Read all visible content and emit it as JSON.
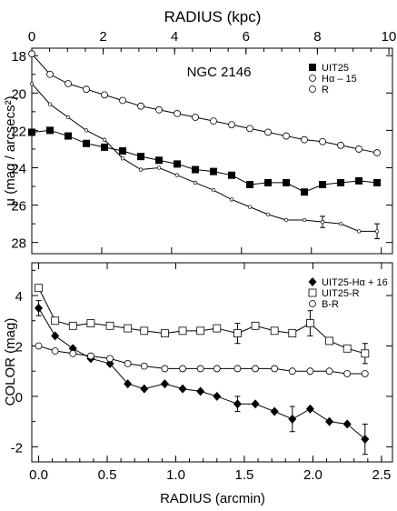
{
  "chart_data": [
    {
      "type": "line",
      "title": "NGC 2146",
      "top_axis_label": "RADIUS (kpc)",
      "top_axis_range": [
        0,
        10
      ],
      "top_ticks": [
        "0",
        "2",
        "4",
        "6",
        "8",
        "10"
      ],
      "ylabel": "μ (mag / arcsecs²)",
      "ylim": [
        28.6,
        17.6
      ],
      "y_inverted": true,
      "yticks": [
        "18",
        "20",
        "22",
        "24",
        "26",
        "28"
      ],
      "xlim": [
        0,
        2.58
      ],
      "legend_position": "top-right",
      "series": [
        {
          "name": "UIT25",
          "marker": "filled-square",
          "x": [
            0.0,
            0.13,
            0.26,
            0.39,
            0.52,
            0.65,
            0.78,
            0.91,
            1.04,
            1.17,
            1.3,
            1.43,
            1.56,
            1.69,
            1.82,
            1.95,
            2.08,
            2.21,
            2.34,
            2.47
          ],
          "y": [
            22.1,
            22.0,
            22.3,
            22.7,
            22.9,
            23.1,
            23.4,
            23.6,
            23.8,
            24.1,
            24.2,
            24.4,
            24.9,
            24.8,
            24.8,
            25.3,
            24.9,
            24.8,
            24.7,
            24.8
          ]
        },
        {
          "name": "Hα – 15",
          "marker": "small-open-circle",
          "x": [
            0.0,
            0.13,
            0.26,
            0.39,
            0.52,
            0.65,
            0.78,
            0.91,
            1.04,
            1.17,
            1.3,
            1.43,
            1.56,
            1.69,
            1.82,
            1.95,
            2.08,
            2.21,
            2.34,
            2.47
          ],
          "y": [
            19.5,
            20.6,
            21.3,
            22.0,
            22.5,
            23.5,
            24.1,
            24.0,
            24.4,
            24.8,
            25.2,
            25.7,
            26.1,
            26.5,
            26.8,
            26.8,
            26.9,
            27.0,
            27.4,
            27.4
          ]
        },
        {
          "name": "R",
          "marker": "open-circle",
          "x": [
            0.0,
            0.13,
            0.26,
            0.39,
            0.52,
            0.65,
            0.78,
            0.91,
            1.04,
            1.17,
            1.3,
            1.43,
            1.56,
            1.69,
            1.82,
            1.95,
            2.08,
            2.21,
            2.34,
            2.47
          ],
          "y": [
            17.9,
            19.0,
            19.5,
            19.8,
            20.1,
            20.4,
            20.7,
            20.9,
            21.1,
            21.3,
            21.5,
            21.7,
            21.9,
            22.1,
            22.3,
            22.5,
            22.6,
            22.8,
            23.0,
            23.2
          ]
        }
      ]
    },
    {
      "type": "line",
      "xlabel": "RADIUS (arcmin)",
      "ylabel": "COLOR (mag)",
      "xlim": [
        -0.05,
        2.58
      ],
      "ylim": [
        -2.6,
        5.3
      ],
      "xticks": [
        "0.0",
        "0.5",
        "1.0",
        "1.5",
        "2.0",
        "2.5"
      ],
      "yticks": [
        "-2",
        "0",
        "2",
        "4"
      ],
      "legend_position": "top-right",
      "series": [
        {
          "name": "UIT25-Hα + 16",
          "marker": "filled-diamond",
          "x": [
            0.0,
            0.12,
            0.25,
            0.38,
            0.52,
            0.65,
            0.77,
            0.92,
            1.05,
            1.18,
            1.3,
            1.45,
            1.58,
            1.72,
            1.85,
            1.98,
            2.12,
            2.25,
            2.38
          ],
          "y": [
            3.5,
            2.4,
            1.9,
            1.5,
            1.3,
            0.5,
            0.3,
            0.5,
            0.3,
            0.2,
            0.0,
            -0.3,
            -0.3,
            -0.6,
            -0.9,
            -0.5,
            -1.0,
            -1.1,
            -1.7
          ]
        },
        {
          "name": "UIT25-R",
          "marker": "open-square",
          "x": [
            0.0,
            0.12,
            0.25,
            0.38,
            0.52,
            0.65,
            0.77,
            0.92,
            1.05,
            1.18,
            1.3,
            1.45,
            1.58,
            1.72,
            1.85,
            1.98,
            2.12,
            2.25,
            2.38
          ],
          "y": [
            4.3,
            3.0,
            2.8,
            2.9,
            2.8,
            2.7,
            2.6,
            2.5,
            2.6,
            2.6,
            2.7,
            2.5,
            2.8,
            2.6,
            2.5,
            2.9,
            2.2,
            1.9,
            1.7
          ]
        },
        {
          "name": "B-R",
          "marker": "open-circle",
          "x": [
            0.0,
            0.12,
            0.25,
            0.38,
            0.52,
            0.65,
            0.77,
            0.92,
            1.05,
            1.18,
            1.3,
            1.45,
            1.58,
            1.72,
            1.85,
            1.98,
            2.12,
            2.25,
            2.38
          ],
          "y": [
            2.0,
            1.8,
            1.7,
            1.6,
            1.5,
            1.3,
            1.2,
            1.1,
            1.1,
            1.1,
            1.1,
            1.1,
            1.1,
            1.1,
            1.0,
            1.0,
            1.0,
            0.9,
            0.9
          ]
        }
      ]
    }
  ]
}
